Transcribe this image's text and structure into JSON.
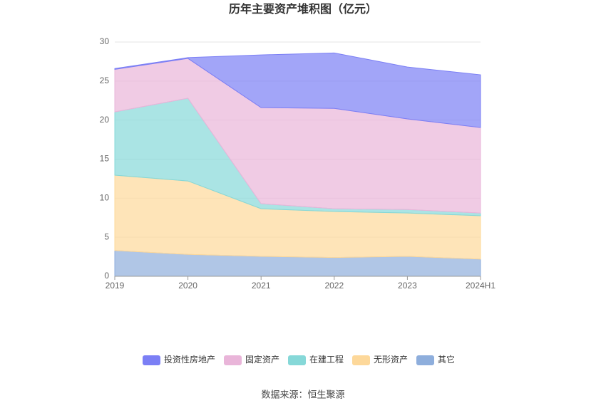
{
  "chart_data": {
    "type": "stacked-area",
    "title": "历年主要资产堆积图（亿元）",
    "categories": [
      "2019",
      "2020",
      "2021",
      "2022",
      "2023",
      "2024H1"
    ],
    "series": [
      {
        "name": "投资性房地产",
        "color": "#7b7ff5",
        "values": [
          0.1,
          0.1,
          6.75,
          7.1,
          6.65,
          6.75
        ]
      },
      {
        "name": "固定资产",
        "color": "#e9b5d9",
        "values": [
          5.45,
          5.1,
          12.3,
          12.85,
          11.6,
          10.95
        ]
      },
      {
        "name": "在建工程",
        "color": "#86d8d8",
        "values": [
          8.1,
          10.6,
          0.65,
          0.35,
          0.45,
          0.35
        ]
      },
      {
        "name": "无形资产",
        "color": "#fdd89a",
        "values": [
          9.65,
          9.4,
          6.1,
          5.9,
          5.55,
          5.55
        ]
      },
      {
        "name": "其它",
        "color": "#8eaedc",
        "values": [
          3.3,
          2.8,
          2.55,
          2.4,
          2.55,
          2.2
        ]
      }
    ],
    "ylim": [
      0,
      30
    ],
    "yticks": [
      0,
      5,
      10,
      15,
      20,
      25,
      30
    ],
    "grid": true,
    "source": "数据来源：恒生聚源"
  }
}
